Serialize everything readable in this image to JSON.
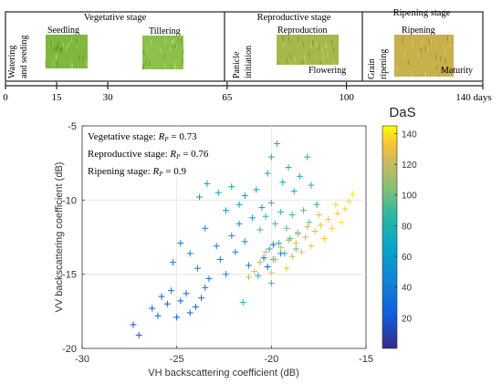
{
  "timeline": {
    "stages": [
      {
        "label": "Vegetative stage"
      },
      {
        "label": "Reproductive stage"
      },
      {
        "label": "Ripening stage"
      }
    ],
    "events": {
      "watering": "Watering and seeding",
      "watering_l1": "Watering",
      "watering_l2": "and seeding",
      "seedling": "Seedling",
      "tillering": "Tillering",
      "panicle": "Panicle initiation",
      "panicle_l1": "Panicle",
      "panicle_l2": "initiation",
      "reproduction": "Reproduction",
      "flowering": "Flowering",
      "grain": "Grain ripening",
      "grain_l1": "Grain",
      "grain_l2": "ripening",
      "ripening": "Ripening",
      "maturity": "Maturity"
    },
    "ticks": [
      "0",
      "15",
      "30",
      "65",
      "100",
      "140 days"
    ],
    "tick_values": [
      0,
      15,
      30,
      65,
      100,
      140
    ],
    "photo_colors": {
      "seedling": "#7fb83a",
      "tillering": "#8cc04a",
      "reproduction": "#a7b84a",
      "ripening": "#c8b04a"
    }
  },
  "chart_data": {
    "type": "scatter",
    "xlabel": "VH backscattering coefficient (dB)",
    "ylabel": "VV backscattering coefficient (dB)",
    "xlim": [
      -30,
      -15
    ],
    "ylim": [
      -20,
      -5
    ],
    "xticks": [
      -30,
      -25,
      -20,
      -15
    ],
    "yticks": [
      -20,
      -15,
      -10,
      -5
    ],
    "grid": true,
    "marker": "+",
    "annotations": [
      {
        "text": "Vegetative stage: ",
        "r": "R",
        "sub": "P",
        "eq": " = 0.73"
      },
      {
        "text": "Reproductive stage: ",
        "r": "R",
        "sub": "P",
        "eq": " = 0.76"
      },
      {
        "text": "Ripening stage: ",
        "r": "R",
        "sub": "P",
        "eq": " = 0.9"
      }
    ],
    "colorbar": {
      "label": "DaS",
      "range": [
        0,
        145
      ],
      "ticks": [
        20,
        40,
        60,
        80,
        100,
        120,
        140
      ]
    },
    "points": [
      {
        "x": -27.3,
        "y": -18.4,
        "c": 18
      },
      {
        "x": -27.0,
        "y": -19.1,
        "c": 16
      },
      {
        "x": -26.3,
        "y": -17.3,
        "c": 20
      },
      {
        "x": -26.0,
        "y": -17.8,
        "c": 22
      },
      {
        "x": -25.8,
        "y": -16.5,
        "c": 24
      },
      {
        "x": -25.5,
        "y": -17.0,
        "c": 23
      },
      {
        "x": -25.3,
        "y": -16.1,
        "c": 35
      },
      {
        "x": -25.0,
        "y": -17.9,
        "c": 21
      },
      {
        "x": -24.8,
        "y": -16.8,
        "c": 26
      },
      {
        "x": -24.5,
        "y": -16.3,
        "c": 27
      },
      {
        "x": -24.3,
        "y": -17.6,
        "c": 25
      },
      {
        "x": -24.0,
        "y": -17.2,
        "c": 29
      },
      {
        "x": -23.7,
        "y": -16.6,
        "c": 32
      },
      {
        "x": -23.5,
        "y": -15.9,
        "c": 34
      },
      {
        "x": -25.2,
        "y": -14.2,
        "c": 40
      },
      {
        "x": -24.8,
        "y": -12.9,
        "c": 45
      },
      {
        "x": -24.3,
        "y": -13.6,
        "c": 42
      },
      {
        "x": -23.9,
        "y": -14.6,
        "c": 38
      },
      {
        "x": -23.5,
        "y": -11.9,
        "c": 50
      },
      {
        "x": -23.3,
        "y": -15.3,
        "c": 36
      },
      {
        "x": -22.9,
        "y": -13.1,
        "c": 44
      },
      {
        "x": -22.7,
        "y": -14.0,
        "c": 41
      },
      {
        "x": -22.4,
        "y": -15.0,
        "c": 46
      },
      {
        "x": -22.1,
        "y": -12.4,
        "c": 48
      },
      {
        "x": -21.9,
        "y": -13.5,
        "c": 43
      },
      {
        "x": -21.7,
        "y": -11.6,
        "c": 52
      },
      {
        "x": -21.4,
        "y": -12.8,
        "c": 47
      },
      {
        "x": -21.2,
        "y": -14.4,
        "c": 39
      },
      {
        "x": -23.8,
        "y": -9.8,
        "c": 60
      },
      {
        "x": -23.4,
        "y": -8.9,
        "c": 66
      },
      {
        "x": -22.8,
        "y": -9.5,
        "c": 63
      },
      {
        "x": -22.4,
        "y": -10.7,
        "c": 58
      },
      {
        "x": -22.1,
        "y": -9.1,
        "c": 65
      },
      {
        "x": -21.7,
        "y": -10.3,
        "c": 61
      },
      {
        "x": -21.4,
        "y": -9.7,
        "c": 64
      },
      {
        "x": -21.0,
        "y": -11.2,
        "c": 55
      },
      {
        "x": -20.8,
        "y": -9.3,
        "c": 68
      },
      {
        "x": -20.5,
        "y": -10.5,
        "c": 62
      },
      {
        "x": -20.2,
        "y": -8.2,
        "c": 72
      },
      {
        "x": -20.0,
        "y": -7.1,
        "c": 75
      },
      {
        "x": -19.7,
        "y": -6.2,
        "c": 78
      },
      {
        "x": -19.4,
        "y": -8.8,
        "c": 70
      },
      {
        "x": -19.1,
        "y": -7.8,
        "c": 74
      },
      {
        "x": -18.8,
        "y": -9.4,
        "c": 73
      },
      {
        "x": -18.5,
        "y": -8.4,
        "c": 76
      },
      {
        "x": -18.1,
        "y": -7.1,
        "c": 80
      },
      {
        "x": -17.9,
        "y": -9.0,
        "c": 77
      },
      {
        "x": -17.6,
        "y": -10.3,
        "c": 79
      },
      {
        "x": -20.6,
        "y": -12.0,
        "c": 90
      },
      {
        "x": -20.3,
        "y": -11.1,
        "c": 85
      },
      {
        "x": -20.0,
        "y": -10.2,
        "c": 88
      },
      {
        "x": -19.8,
        "y": -11.6,
        "c": 92
      },
      {
        "x": -19.5,
        "y": -10.8,
        "c": 86
      },
      {
        "x": -19.2,
        "y": -11.9,
        "c": 95
      },
      {
        "x": -18.9,
        "y": -11.0,
        "c": 89
      },
      {
        "x": -18.6,
        "y": -12.2,
        "c": 94
      },
      {
        "x": -18.3,
        "y": -10.7,
        "c": 91
      },
      {
        "x": -18.0,
        "y": -11.5,
        "c": 97
      },
      {
        "x": -20.1,
        "y": -13.3,
        "c": 82
      },
      {
        "x": -19.9,
        "y": -14.0,
        "c": 84
      },
      {
        "x": -19.6,
        "y": -12.9,
        "c": 87
      },
      {
        "x": -19.3,
        "y": -13.6,
        "c": 83
      },
      {
        "x": -19.0,
        "y": -12.6,
        "c": 93
      },
      {
        "x": -18.7,
        "y": -13.3,
        "c": 96
      },
      {
        "x": -20.4,
        "y": -13.9,
        "c": 30
      },
      {
        "x": -20.2,
        "y": -14.5,
        "c": 28
      },
      {
        "x": -19.9,
        "y": -13.0,
        "c": 33
      },
      {
        "x": -19.5,
        "y": -13.6,
        "c": 37
      },
      {
        "x": -20.0,
        "y": -15.6,
        "c": 88
      },
      {
        "x": -20.7,
        "y": -15.1,
        "c": 80
      },
      {
        "x": -21.5,
        "y": -16.9,
        "c": 85
      },
      {
        "x": -21.2,
        "y": -15.2,
        "c": 120
      },
      {
        "x": -20.9,
        "y": -14.8,
        "c": 125
      },
      {
        "x": -20.6,
        "y": -14.2,
        "c": 118
      },
      {
        "x": -20.3,
        "y": -13.5,
        "c": 122
      },
      {
        "x": -20.0,
        "y": -14.9,
        "c": 128
      },
      {
        "x": -19.8,
        "y": -14.0,
        "c": 115
      },
      {
        "x": -19.5,
        "y": -13.2,
        "c": 124
      },
      {
        "x": -19.2,
        "y": -14.6,
        "c": 130
      },
      {
        "x": -18.9,
        "y": -13.8,
        "c": 119
      },
      {
        "x": -18.7,
        "y": -12.9,
        "c": 126
      },
      {
        "x": -18.4,
        "y": -13.5,
        "c": 132
      },
      {
        "x": -18.2,
        "y": -12.5,
        "c": 121
      },
      {
        "x": -17.9,
        "y": -13.1,
        "c": 134
      },
      {
        "x": -17.7,
        "y": -12.1,
        "c": 127
      },
      {
        "x": -17.4,
        "y": -11.7,
        "c": 129
      },
      {
        "x": -17.2,
        "y": -12.6,
        "c": 136
      },
      {
        "x": -17.0,
        "y": -11.3,
        "c": 131
      },
      {
        "x": -16.8,
        "y": -11.9,
        "c": 138
      },
      {
        "x": -16.5,
        "y": -10.9,
        "c": 133
      },
      {
        "x": -16.3,
        "y": -11.5,
        "c": 140
      },
      {
        "x": -16.1,
        "y": -10.6,
        "c": 135
      },
      {
        "x": -15.9,
        "y": -10.1,
        "c": 139
      },
      {
        "x": -15.7,
        "y": -9.6,
        "c": 141
      },
      {
        "x": -16.6,
        "y": -10.3,
        "c": 137
      },
      {
        "x": -17.5,
        "y": -11.0,
        "c": 126
      },
      {
        "x": -18.1,
        "y": -11.8,
        "c": 123
      },
      {
        "x": -18.6,
        "y": -12.3,
        "c": 117
      },
      {
        "x": -19.1,
        "y": -12.7,
        "c": 114
      }
    ]
  }
}
